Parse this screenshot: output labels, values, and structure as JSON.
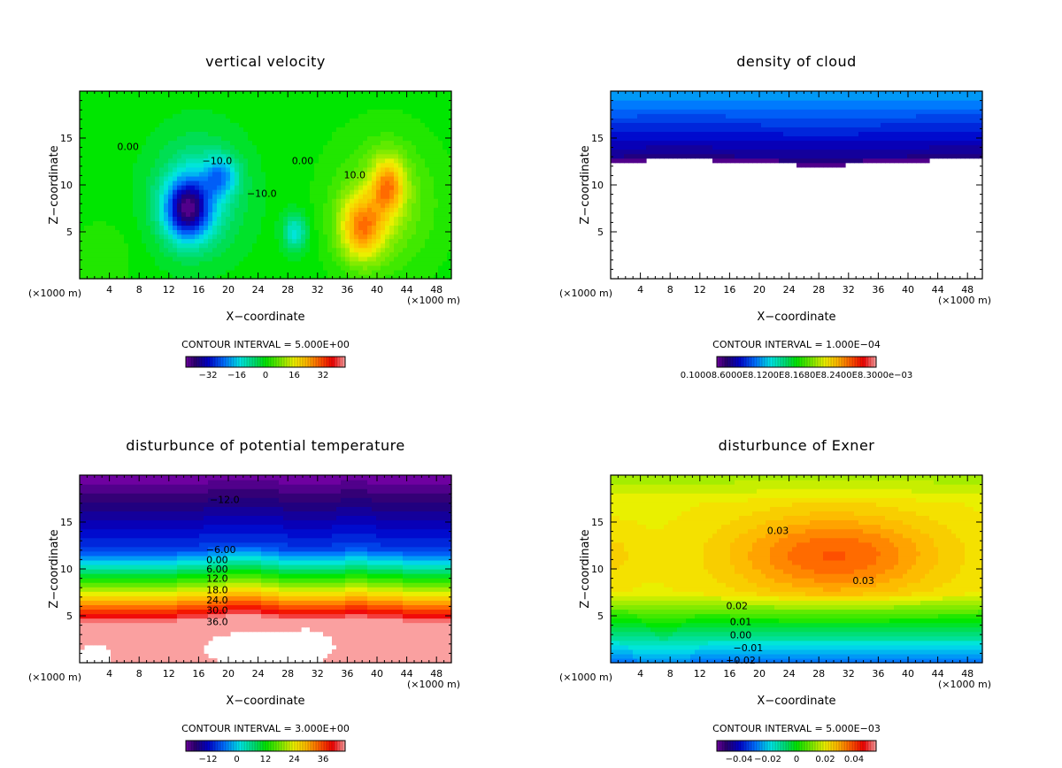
{
  "figure": {
    "unit_label": "(×1000 m)",
    "xlabel": "X−coordinate",
    "ylabel": "Z−coordinate",
    "xticks": [
      4,
      8,
      12,
      16,
      20,
      24,
      28,
      32,
      36,
      40,
      44,
      48
    ],
    "yticks": [
      5,
      10,
      15
    ]
  },
  "chart_data": [
    {
      "type": "heatmap",
      "id": "vertical-velocity",
      "title": "vertical velocity",
      "xlabel": "X−coordinate",
      "ylabel": "Z−coordinate",
      "x_unit": "(×1000 m)",
      "xlim": [
        0,
        50
      ],
      "ylim": [
        0,
        20
      ],
      "xticks": [
        4,
        8,
        12,
        16,
        20,
        24,
        28,
        32,
        36,
        40,
        44,
        48
      ],
      "yticks": [
        5,
        10,
        15
      ],
      "contour_interval_label": "CONTOUR INTERVAL = 5.000E+00",
      "contour_interval": 5.0,
      "colorbar_ticks": [
        "−32",
        "−16",
        "0",
        "16",
        "32"
      ],
      "colorbar_range": [
        -40,
        40
      ],
      "contour_labels": [
        {
          "text": "0.00",
          "x": 6.5,
          "z": 14
        },
        {
          "text": "−10.0",
          "x": 18.5,
          "z": 12.5
        },
        {
          "text": "−10.0",
          "x": 24.5,
          "z": 9
        },
        {
          "text": "0.00",
          "x": 30,
          "z": 12.5
        },
        {
          "text": "10.0",
          "x": 37,
          "z": 11
        }
      ],
      "features": [
        {
          "kind": "min",
          "x": 14.5,
          "z": 7.5,
          "value": -30
        },
        {
          "kind": "min",
          "x": 19,
          "z": 11,
          "value": -18
        },
        {
          "kind": "min",
          "x": 29,
          "z": 5,
          "value": -14
        },
        {
          "kind": "max",
          "x": 38,
          "z": 5.5,
          "value": 22
        },
        {
          "kind": "max",
          "x": 41.5,
          "z": 10,
          "value": 20
        }
      ]
    },
    {
      "type": "heatmap",
      "id": "density-of-cloud",
      "title": "density of cloud",
      "xlabel": "X−coordinate",
      "ylabel": "Z−coordinate",
      "x_unit": "(×1000 m)",
      "xlim": [
        0,
        50
      ],
      "ylim": [
        0,
        20
      ],
      "xticks": [
        4,
        8,
        12,
        16,
        20,
        24,
        28,
        32,
        36,
        40,
        44,
        48
      ],
      "yticks": [
        5,
        10,
        15
      ],
      "contour_interval_label": "CONTOUR INTERVAL = 1.000E−04",
      "contour_interval": 0.0001,
      "colorbar_ticks_text": "0.10008.6000E8.1200E8.1680E8.2400E8.3000e−03",
      "cloud_base_z": 12.4
    },
    {
      "type": "heatmap",
      "id": "disturbance-potential-temperature",
      "title": "disturbunce of potential temperature",
      "xlabel": "X−coordinate",
      "ylabel": "Z−coordinate",
      "x_unit": "(×1000 m)",
      "xlim": [
        0,
        50
      ],
      "ylim": [
        0,
        20
      ],
      "xticks": [
        4,
        8,
        12,
        16,
        20,
        24,
        28,
        32,
        36,
        40,
        44,
        48
      ],
      "yticks": [
        5,
        10,
        15
      ],
      "contour_interval_label": "CONTOUR INTERVAL = 3.000E+00",
      "contour_interval": 3.0,
      "colorbar_ticks": [
        "−12",
        "0",
        "12",
        "24",
        "36"
      ],
      "colorbar_range": [
        -18,
        42
      ],
      "contour_labels": [
        {
          "text": "−12.0",
          "x": 19.5,
          "z": 17.3
        },
        {
          "text": "−6.00",
          "x": 19,
          "z": 12
        },
        {
          "text": "0.00",
          "x": 18.5,
          "z": 10.9
        },
        {
          "text": "6.00",
          "x": 18.5,
          "z": 9.9
        },
        {
          "text": "12.0",
          "x": 18.5,
          "z": 8.9
        },
        {
          "text": "18.0",
          "x": 18.5,
          "z": 7.7
        },
        {
          "text": "24.0",
          "x": 18.5,
          "z": 6.6
        },
        {
          "text": "30.0",
          "x": 18.5,
          "z": 5.5
        },
        {
          "text": "36.0",
          "x": 18.5,
          "z": 4.3
        }
      ]
    },
    {
      "type": "heatmap",
      "id": "disturbance-exner",
      "title": "disturbunce of Exner",
      "xlabel": "X−coordinate",
      "ylabel": "Z−coordinate",
      "x_unit": "(×1000 m)",
      "xlim": [
        0,
        50
      ],
      "ylim": [
        0,
        20
      ],
      "xticks": [
        4,
        8,
        12,
        16,
        20,
        24,
        28,
        32,
        36,
        40,
        44,
        48
      ],
      "yticks": [
        5,
        10,
        15
      ],
      "contour_interval_label": "CONTOUR INTERVAL = 5.000E−03",
      "contour_interval": 0.005,
      "colorbar_ticks": [
        "−0.04",
        "−0.02",
        "0",
        "0.02",
        "0.04"
      ],
      "colorbar_range": [
        -0.05,
        0.05
      ],
      "contour_labels": [
        {
          "text": "0.03",
          "x": 22.5,
          "z": 14
        },
        {
          "text": "0.03",
          "x": 34,
          "z": 8.7
        },
        {
          "text": "0.02",
          "x": 17,
          "z": 6
        },
        {
          "text": "0.01",
          "x": 17.5,
          "z": 4.3
        },
        {
          "text": "0.00",
          "x": 17.5,
          "z": 2.9
        },
        {
          "text": "−0.01",
          "x": 18.5,
          "z": 1.5
        },
        {
          "text": "−0.02",
          "x": 17.5,
          "z": 0.2
        }
      ]
    }
  ]
}
